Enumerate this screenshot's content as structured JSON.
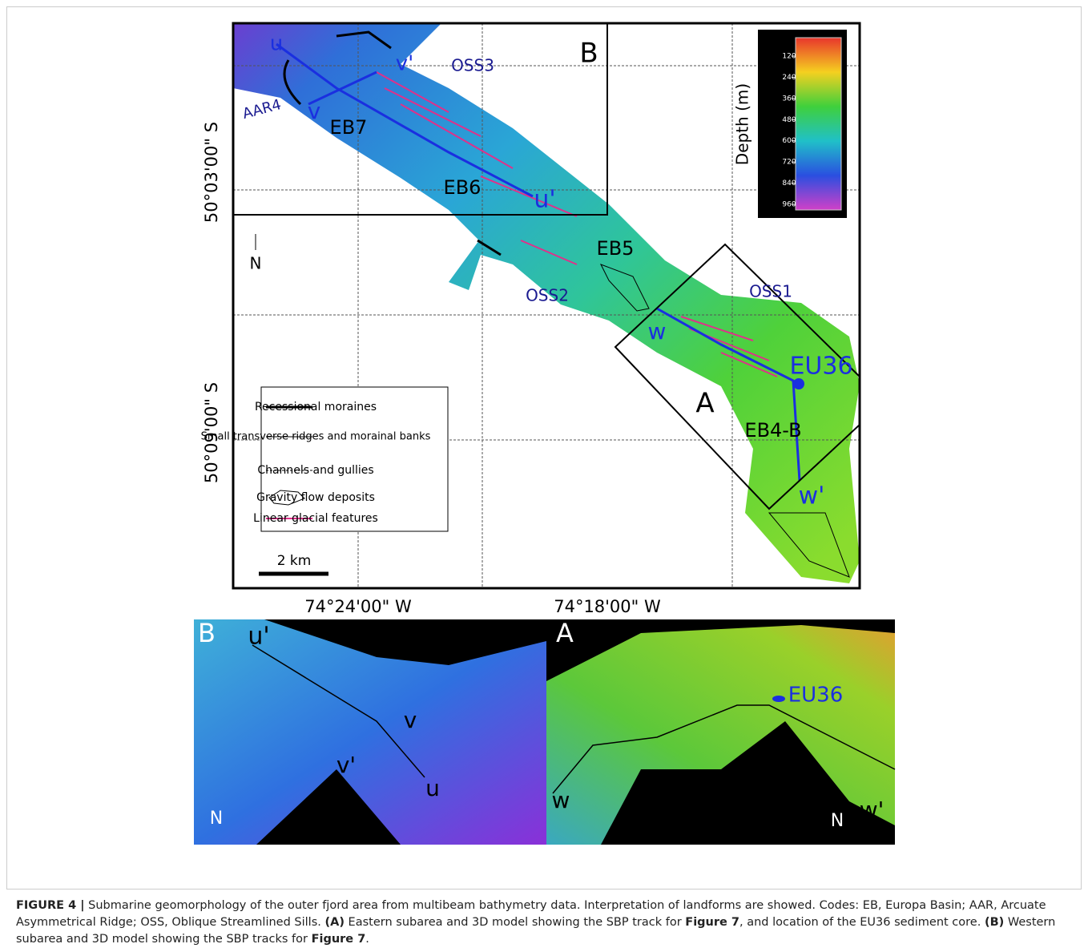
{
  "map": {
    "labels": [
      "u",
      "v'",
      "OSS3",
      "B",
      "AAR4",
      "v",
      "EB7",
      "EB6",
      "u'",
      "EB5",
      "OSS2",
      "OSS1",
      "w",
      "EU36",
      "A",
      "EB4-B",
      "w'",
      "N"
    ],
    "scale_bar": "2 km",
    "lat_labels": [
      "50°03'00\" S",
      "50°09'00\" S"
    ],
    "lon_labels": [
      "74°24'00\" W",
      "74°18'00\" W"
    ],
    "colorbar": {
      "title": "Depth (m)",
      "ticks": [
        120,
        240,
        360,
        480,
        600,
        720,
        840,
        960
      ]
    },
    "legend": [
      "Recessional moraines",
      "Small transverse ridges and morainal banks",
      "Channels and gullies",
      "Gravity flow deposits",
      "Linear glacial features"
    ]
  },
  "panels": [
    {
      "label": "B",
      "annotations": [
        "u'",
        "v",
        "v'",
        "u",
        "N"
      ]
    },
    {
      "label": "A",
      "annotations": [
        "EU36",
        "w",
        "w'",
        "N"
      ]
    }
  ],
  "caption": [
    {
      "text": "FIGURE 4 |",
      "bold": true
    },
    {
      "text": " Submarine geomorphology of the outer fjord area from multibeam bathymetry data. Interpretation of landforms are showed. Codes: EB, Europa Basin; AAR, Arcuate Asymmetrical Ridge; OSS, Oblique Streamlined Sills. ",
      "bold": false
    },
    {
      "text": "(A)",
      "bold": true
    },
    {
      "text": " Eastern subarea and 3D model showing the SBP track for ",
      "bold": false
    },
    {
      "text": "Figure 7",
      "bold": true
    },
    {
      "text": ", and location of the EU36 sediment core. ",
      "bold": false
    },
    {
      "text": "(B)",
      "bold": true
    },
    {
      "text": " Western subarea and 3D model showing the SBP tracks for ",
      "bold": false
    },
    {
      "text": "Figure 7",
      "bold": true
    },
    {
      "text": ".",
      "bold": false
    }
  ]
}
